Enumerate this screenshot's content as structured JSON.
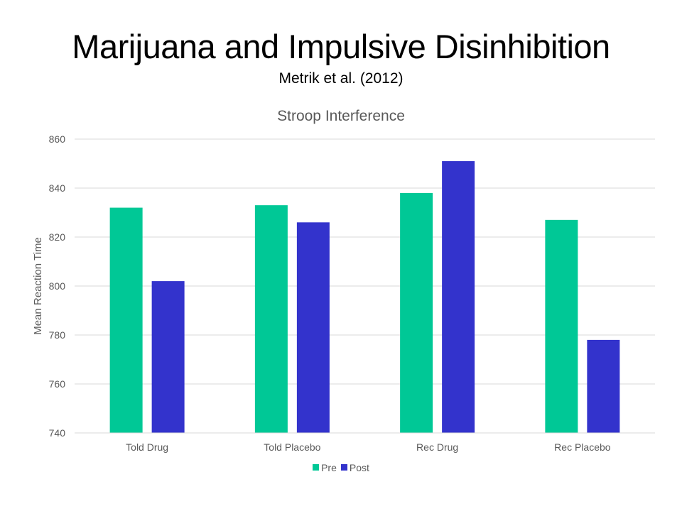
{
  "slide": {
    "title": "Marijuana and Impulsive Disinhibition",
    "subtitle": "Metrik et al. (2012)"
  },
  "chart_data": {
    "type": "bar",
    "title": "Stroop Interference",
    "xlabel": "",
    "ylabel": "Mean Reaction Time",
    "ylim": [
      740,
      860
    ],
    "yticks": [
      740,
      760,
      780,
      800,
      820,
      840,
      860
    ],
    "grid": true,
    "legend_position": "bottom",
    "categories": [
      "Told Drug",
      "Told Placebo",
      "Rec Drug",
      "Rec Placebo"
    ],
    "series": [
      {
        "name": "Pre",
        "color": "#00C896",
        "values": [
          832,
          833,
          838,
          827
        ]
      },
      {
        "name": "Post",
        "color": "#3333CC",
        "values": [
          802,
          826,
          851,
          778
        ]
      }
    ]
  }
}
